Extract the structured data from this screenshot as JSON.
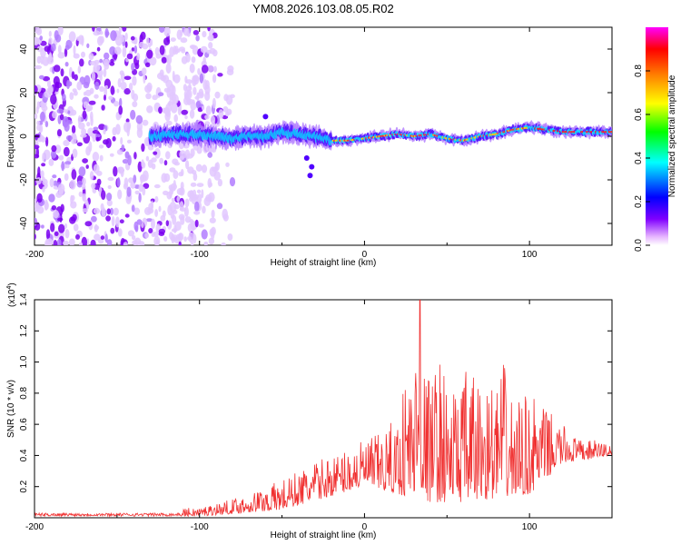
{
  "title": "YM08.2026.103.08.05.R02",
  "chart_data": [
    {
      "type": "heatmap",
      "xlabel": "Height of straight line (km)",
      "ylabel": "Frequency (Hz)",
      "xlim": [
        -200,
        150
      ],
      "ylim": [
        -50,
        50
      ],
      "xticks": [
        -200,
        -100,
        0,
        100
      ],
      "xtick_labels": [
        "-200",
        "-100",
        "0",
        "100"
      ],
      "yticks": [
        -40,
        -20,
        0,
        20,
        40
      ],
      "ytick_labels": [
        "-40",
        "-20",
        "0",
        "20",
        "40"
      ],
      "colorbar": {
        "label": "Normalized spectral amplitude",
        "range": [
          0,
          1
        ],
        "ticks": [
          0.0,
          0.2,
          0.4,
          0.6,
          0.8
        ],
        "tick_labels": [
          "0.0",
          "0.2",
          "0.4",
          "0.6",
          "0.8"
        ],
        "colormap": [
          "#ffffff",
          "#8000ff",
          "#0000ff",
          "#00ffff",
          "#00ff00",
          "#ffff00",
          "#ff8000",
          "#ff0000",
          "#ff00ff"
        ]
      },
      "ridge": {
        "x": [
          -130,
          -110,
          -90,
          -80,
          -70,
          -60,
          -50,
          -40,
          -30,
          -20,
          -10,
          0,
          10,
          20,
          30,
          40,
          50,
          60,
          70,
          80,
          90,
          100,
          110,
          120,
          150
        ],
        "y": [
          0,
          1,
          0,
          -1,
          0,
          0,
          2,
          1,
          0,
          -2,
          -2,
          -1,
          0,
          1,
          0,
          1,
          -1,
          -2,
          0,
          1,
          3,
          4,
          3,
          2,
          2
        ]
      }
    },
    {
      "type": "line",
      "xlabel": "Height of straight line (km)",
      "ylabel": "SNR (10 * v/v)",
      "scale_label": "(x10",
      "scale_exp": "4",
      "xlim": [
        -200,
        150
      ],
      "ylim": [
        0,
        1.4
      ],
      "xticks": [
        -200,
        -100,
        0,
        100
      ],
      "xtick_labels": [
        "-200",
        "-100",
        "0",
        "100"
      ],
      "yticks": [
        0.2,
        0.4,
        0.6,
        0.8,
        1.0,
        1.2,
        1.4
      ],
      "ytick_labels": [
        "0.2",
        "0.4",
        "0.6",
        "0.8",
        "1.0",
        "1.2",
        "1.4"
      ],
      "color": "#f03030",
      "envelope": {
        "x": [
          -200,
          -150,
          -120,
          -110,
          -100,
          -80,
          -60,
          -40,
          -30,
          -20,
          -10,
          0,
          10,
          20,
          25,
          30,
          33,
          36,
          40,
          45,
          50,
          55,
          60,
          70,
          80,
          83,
          90,
          100,
          110,
          120,
          130,
          140,
          150
        ],
        "y": [
          0.02,
          0.02,
          0.03,
          0.06,
          0.07,
          0.12,
          0.2,
          0.3,
          0.36,
          0.4,
          0.45,
          0.5,
          0.55,
          0.65,
          0.95,
          1.0,
          1.4,
          1.0,
          0.9,
          1.05,
          0.9,
          0.85,
          0.95,
          0.9,
          0.85,
          1.05,
          0.75,
          0.8,
          0.7,
          0.6,
          0.5,
          0.5,
          0.48
        ]
      },
      "floor": {
        "x": [
          -200,
          -100,
          -50,
          0,
          20,
          40,
          60,
          100,
          120,
          150
        ],
        "y": [
          0.0,
          0.01,
          0.05,
          0.2,
          0.15,
          0.1,
          0.1,
          0.15,
          0.35,
          0.4
        ]
      }
    }
  ]
}
